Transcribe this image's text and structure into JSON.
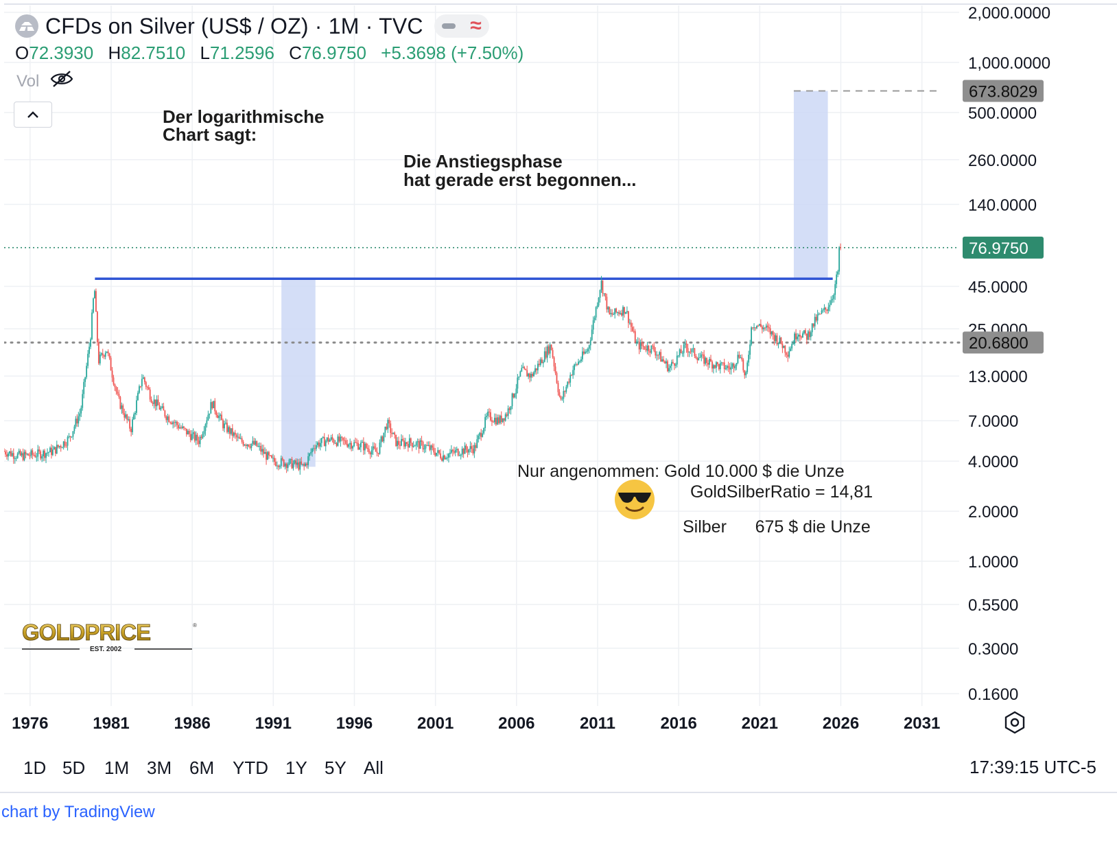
{
  "header": {
    "title": "CFDs on Silver (US$ / OZ) · 1M · TVC",
    "ohlc": {
      "o_label": "O",
      "o_value": "72.3930",
      "h_label": "H",
      "h_value": "82.7510",
      "l_label": "L",
      "l_value": "71.2596",
      "c_label": "C",
      "c_value": "76.9750",
      "change": "+5.3698 (+7.50%)"
    },
    "vol_label": "Vol"
  },
  "annotations": {
    "log_note_line1": "Der logarithmische",
    "log_note_line2": "Chart sagt:",
    "phase_note_line1": "Die Anstiegsphase",
    "phase_note_line2": "hat gerade erst begonnen...",
    "assume_line1": "Nur angenommen: Gold 10.000 $ die Unze",
    "assume_line2": "Silber      675 $ die Unze",
    "ratio_text": "GoldSilberRatio = 14,81"
  },
  "logo": {
    "name": "GOLDPRICE",
    "sub": "EST. 2002"
  },
  "range_buttons": [
    "1D",
    "5D",
    "1M",
    "3M",
    "6M",
    "YTD",
    "1Y",
    "5Y",
    "All"
  ],
  "clock": "17:39:15 UTC-5",
  "credit": "chart by TradingView",
  "colors": {
    "up": "#26a69a",
    "down": "#ef5350",
    "resistance_line": "#2f55d4",
    "highlight_box": "#cdd8f6",
    "last_price_tag": "#2e8b6e",
    "grey_tag": "#8e8e8e"
  },
  "chart_data": {
    "type": "candlestick",
    "scale": "log",
    "interval": "1M",
    "y_ticks": [
      "2,000.0000",
      "1,000.0000",
      "500.0000",
      "260.0000",
      "140.0000",
      "45.0000",
      "25.0000",
      "13.0000",
      "7.0000",
      "4.0000",
      "2.0000",
      "1.0000",
      "0.5500",
      "0.3000",
      "0.1600"
    ],
    "x_ticks": [
      "1976",
      "1981",
      "1986",
      "1991",
      "1996",
      "2001",
      "2006",
      "2011",
      "2016",
      "2021",
      "2026",
      "2031"
    ],
    "ylim": [
      0.14,
      2200
    ],
    "xlim": [
      1974.4,
      2033.3
    ],
    "price_tags": [
      {
        "label": "673.8029",
        "value": 673.8029,
        "style": "grey"
      },
      {
        "label": "76.9750",
        "value": 76.975,
        "style": "last"
      },
      {
        "label": "20.6800",
        "value": 20.68,
        "style": "grey"
      }
    ],
    "horizontal_lines": [
      {
        "value": 50,
        "from": 1980.0,
        "to": 2025.5,
        "style": "resistance"
      },
      {
        "value": 20.68,
        "style": "dotted"
      },
      {
        "value": 76.975,
        "style": "dotted-last"
      },
      {
        "value": 673.8029,
        "from": 2023.1,
        "to": 2032.0,
        "style": "dashed"
      }
    ],
    "highlight_boxes": [
      {
        "x0": 1991.5,
        "x1": 1993.6,
        "y0": 3.7,
        "y1": 50
      },
      {
        "x0": 2023.1,
        "x1": 2025.2,
        "y0": 50,
        "y1": 673.8029
      }
    ],
    "price_path": [
      [
        1974.4,
        4.6
      ],
      [
        1975.5,
        4.3
      ],
      [
        1976.5,
        4.4
      ],
      [
        1977.5,
        4.6
      ],
      [
        1978.5,
        5.5
      ],
      [
        1979.2,
        8.0
      ],
      [
        1979.8,
        22.0
      ],
      [
        1980.05,
        45.0
      ],
      [
        1980.3,
        16.0
      ],
      [
        1980.8,
        19.0
      ],
      [
        1981.5,
        9.5
      ],
      [
        1982.3,
        6.2
      ],
      [
        1983.0,
        13.0
      ],
      [
        1983.6,
        9.5
      ],
      [
        1984.5,
        7.5
      ],
      [
        1985.5,
        6.2
      ],
      [
        1986.5,
        5.3
      ],
      [
        1987.3,
        9.0
      ],
      [
        1988.0,
        6.6
      ],
      [
        1989.0,
        5.3
      ],
      [
        1990.0,
        5.0
      ],
      [
        1991.0,
        4.0
      ],
      [
        1992.0,
        3.9
      ],
      [
        1993.0,
        3.7
      ],
      [
        1993.6,
        5.0
      ],
      [
        1994.5,
        5.4
      ],
      [
        1995.5,
        5.2
      ],
      [
        1996.5,
        5.0
      ],
      [
        1997.5,
        4.5
      ],
      [
        1998.1,
        6.8
      ],
      [
        1998.7,
        5.1
      ],
      [
        1999.5,
        5.2
      ],
      [
        2000.5,
        4.9
      ],
      [
        2001.5,
        4.3
      ],
      [
        2002.5,
        4.6
      ],
      [
        2003.5,
        4.8
      ],
      [
        2004.3,
        7.5
      ],
      [
        2005.0,
        7.0
      ],
      [
        2005.5,
        7.8
      ],
      [
        2006.4,
        14.0
      ],
      [
        2007.0,
        13.0
      ],
      [
        2008.2,
        20.0
      ],
      [
        2008.8,
        9.0
      ],
      [
        2009.5,
        14.0
      ],
      [
        2010.5,
        19.0
      ],
      [
        2011.3,
        48.0
      ],
      [
        2011.8,
        30.0
      ],
      [
        2012.8,
        33.0
      ],
      [
        2013.5,
        20.0
      ],
      [
        2014.5,
        19.0
      ],
      [
        2015.5,
        14.5
      ],
      [
        2016.5,
        19.5
      ],
      [
        2017.5,
        16.5
      ],
      [
        2018.5,
        15.0
      ],
      [
        2019.3,
        14.5
      ],
      [
        2019.9,
        18.0
      ],
      [
        2020.2,
        12.0
      ],
      [
        2020.6,
        27.0
      ],
      [
        2021.5,
        25.0
      ],
      [
        2022.4,
        20.5
      ],
      [
        2022.8,
        18.0
      ],
      [
        2023.4,
        24.0
      ],
      [
        2024.0,
        22.5
      ],
      [
        2024.6,
        29.0
      ],
      [
        2025.2,
        33.0
      ],
      [
        2025.6,
        40.0
      ],
      [
        2025.9,
        55.0
      ],
      [
        2026.0,
        76.975
      ]
    ]
  }
}
